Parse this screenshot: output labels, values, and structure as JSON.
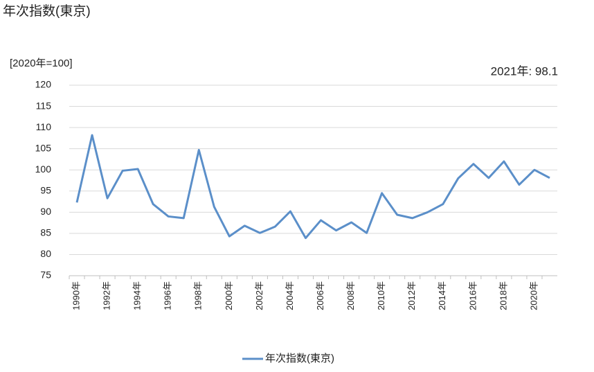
{
  "chart_data": {
    "type": "line",
    "title": "年次指数(東京)",
    "y_label": "[2020年=100]",
    "annotation": "2021年: 98.1",
    "categories": [
      "1990年",
      null,
      "1992年",
      null,
      "1994年",
      null,
      "1996年",
      null,
      "1998年",
      null,
      "2000年",
      null,
      "2002年",
      null,
      "2004年",
      null,
      "2006年",
      null,
      "2008年",
      null,
      "2010年",
      null,
      "2012年",
      null,
      "2014年",
      null,
      "2016年",
      null,
      "2018年",
      null,
      "2020年",
      null
    ],
    "series": [
      {
        "name": "年次指数(東京)",
        "color": "#5b8fc9",
        "values": [
          92.3,
          108.2,
          93.3,
          99.8,
          100.2,
          91.9,
          89.0,
          88.6,
          104.7,
          91.3,
          84.3,
          86.8,
          85.1,
          86.6,
          90.2,
          83.9,
          88.1,
          85.7,
          87.6,
          85.1,
          94.5,
          89.4,
          88.6,
          90.0,
          91.9,
          98.0,
          101.4,
          98.1,
          102.0,
          96.5,
          100.0,
          98.1
        ]
      }
    ],
    "ylim": [
      75,
      120
    ],
    "yticks": [
      75,
      80,
      85,
      90,
      95,
      100,
      105,
      110,
      115,
      120
    ],
    "grid": true,
    "legend": "bottom"
  }
}
